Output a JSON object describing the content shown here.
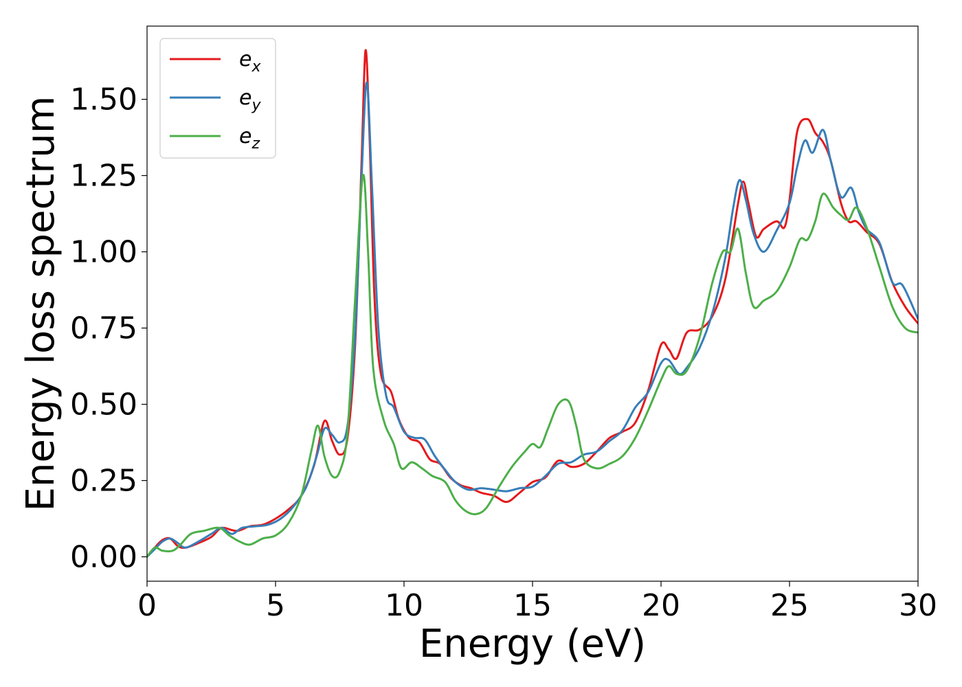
{
  "chart_data": {
    "type": "line",
    "xlabel": "Energy (eV)",
    "ylabel": "Energy loss spectrum",
    "xlim": [
      0,
      30
    ],
    "ylim": [
      -0.08,
      1.74
    ],
    "xticks": [
      {
        "value": 0,
        "label": "0"
      },
      {
        "value": 5,
        "label": "5"
      },
      {
        "value": 10,
        "label": "10"
      },
      {
        "value": 15,
        "label": "15"
      },
      {
        "value": 20,
        "label": "20"
      },
      {
        "value": 25,
        "label": "25"
      },
      {
        "value": 30,
        "label": "30"
      }
    ],
    "yticks": [
      {
        "value": 0.0,
        "label": "0.00"
      },
      {
        "value": 0.25,
        "label": "0.25"
      },
      {
        "value": 0.5,
        "label": "0.50"
      },
      {
        "value": 0.75,
        "label": "0.75"
      },
      {
        "value": 1.0,
        "label": "1.00"
      },
      {
        "value": 1.25,
        "label": "1.25"
      },
      {
        "value": 1.5,
        "label": "1.50"
      }
    ],
    "grid": false,
    "legend_position": "top-left",
    "series": [
      {
        "name": "e",
        "subscript": "x",
        "color": "#e41a1c",
        "points": [
          [
            0,
            0.0
          ],
          [
            0.3,
            0.03
          ],
          [
            0.6,
            0.055
          ],
          [
            0.9,
            0.06
          ],
          [
            1.2,
            0.035
          ],
          [
            1.5,
            0.03
          ],
          [
            2.0,
            0.045
          ],
          [
            2.5,
            0.065
          ],
          [
            2.8,
            0.09
          ],
          [
            3.0,
            0.095
          ],
          [
            3.5,
            0.085
          ],
          [
            4.0,
            0.1
          ],
          [
            4.5,
            0.105
          ],
          [
            5.0,
            0.125
          ],
          [
            5.5,
            0.155
          ],
          [
            6.0,
            0.2
          ],
          [
            6.5,
            0.3
          ],
          [
            6.9,
            0.445
          ],
          [
            7.2,
            0.38
          ],
          [
            7.5,
            0.335
          ],
          [
            7.8,
            0.39
          ],
          [
            8.1,
            0.7
          ],
          [
            8.35,
            1.3
          ],
          [
            8.5,
            1.66
          ],
          [
            8.65,
            1.4
          ],
          [
            8.85,
            0.85
          ],
          [
            9.1,
            0.6
          ],
          [
            9.5,
            0.54
          ],
          [
            9.8,
            0.45
          ],
          [
            10.2,
            0.39
          ],
          [
            10.6,
            0.375
          ],
          [
            11.0,
            0.32
          ],
          [
            11.4,
            0.305
          ],
          [
            11.8,
            0.26
          ],
          [
            12.2,
            0.235
          ],
          [
            12.6,
            0.225
          ],
          [
            13.0,
            0.21
          ],
          [
            13.5,
            0.2
          ],
          [
            14.0,
            0.18
          ],
          [
            14.5,
            0.21
          ],
          [
            15.0,
            0.245
          ],
          [
            15.5,
            0.26
          ],
          [
            16.0,
            0.315
          ],
          [
            16.5,
            0.295
          ],
          [
            17.0,
            0.305
          ],
          [
            17.5,
            0.345
          ],
          [
            18.0,
            0.39
          ],
          [
            18.5,
            0.41
          ],
          [
            19.0,
            0.44
          ],
          [
            19.5,
            0.545
          ],
          [
            20.0,
            0.695
          ],
          [
            20.3,
            0.68
          ],
          [
            20.6,
            0.65
          ],
          [
            21.0,
            0.735
          ],
          [
            21.5,
            0.745
          ],
          [
            22.0,
            0.79
          ],
          [
            22.5,
            0.91
          ],
          [
            23.0,
            1.16
          ],
          [
            23.2,
            1.23
          ],
          [
            23.4,
            1.16
          ],
          [
            23.7,
            1.05
          ],
          [
            24.0,
            1.075
          ],
          [
            24.5,
            1.1
          ],
          [
            24.8,
            1.08
          ],
          [
            25.0,
            1.17
          ],
          [
            25.3,
            1.395
          ],
          [
            25.7,
            1.435
          ],
          [
            26.0,
            1.39
          ],
          [
            26.3,
            1.36
          ],
          [
            26.6,
            1.3
          ],
          [
            27.0,
            1.16
          ],
          [
            27.3,
            1.1
          ],
          [
            27.6,
            1.1
          ],
          [
            28.0,
            1.065
          ],
          [
            28.5,
            1.025
          ],
          [
            29.0,
            0.9
          ],
          [
            29.5,
            0.82
          ],
          [
            30.0,
            0.765
          ]
        ]
      },
      {
        "name": "e",
        "subscript": "y",
        "color": "#377eb8",
        "points": [
          [
            0,
            0.0
          ],
          [
            0.3,
            0.025
          ],
          [
            0.6,
            0.05
          ],
          [
            0.9,
            0.06
          ],
          [
            1.2,
            0.045
          ],
          [
            1.5,
            0.03
          ],
          [
            2.0,
            0.05
          ],
          [
            2.5,
            0.075
          ],
          [
            2.9,
            0.095
          ],
          [
            3.3,
            0.075
          ],
          [
            3.7,
            0.095
          ],
          [
            4.2,
            0.1
          ],
          [
            4.7,
            0.105
          ],
          [
            5.2,
            0.125
          ],
          [
            5.7,
            0.165
          ],
          [
            6.2,
            0.23
          ],
          [
            6.6,
            0.33
          ],
          [
            6.9,
            0.42
          ],
          [
            7.2,
            0.4
          ],
          [
            7.5,
            0.375
          ],
          [
            7.8,
            0.43
          ],
          [
            8.1,
            0.73
          ],
          [
            8.35,
            1.25
          ],
          [
            8.55,
            1.555
          ],
          [
            8.75,
            1.22
          ],
          [
            9.0,
            0.75
          ],
          [
            9.3,
            0.53
          ],
          [
            9.6,
            0.49
          ],
          [
            10.0,
            0.41
          ],
          [
            10.4,
            0.39
          ],
          [
            10.8,
            0.385
          ],
          [
            11.2,
            0.33
          ],
          [
            11.6,
            0.285
          ],
          [
            12.0,
            0.245
          ],
          [
            12.5,
            0.22
          ],
          [
            13.0,
            0.225
          ],
          [
            13.5,
            0.22
          ],
          [
            14.0,
            0.215
          ],
          [
            14.5,
            0.225
          ],
          [
            15.0,
            0.23
          ],
          [
            15.5,
            0.265
          ],
          [
            16.0,
            0.305
          ],
          [
            16.5,
            0.31
          ],
          [
            17.0,
            0.335
          ],
          [
            17.5,
            0.345
          ],
          [
            18.0,
            0.38
          ],
          [
            18.5,
            0.415
          ],
          [
            19.0,
            0.49
          ],
          [
            19.5,
            0.54
          ],
          [
            20.0,
            0.635
          ],
          [
            20.3,
            0.645
          ],
          [
            20.7,
            0.6
          ],
          [
            21.0,
            0.62
          ],
          [
            21.5,
            0.685
          ],
          [
            22.0,
            0.8
          ],
          [
            22.5,
            0.98
          ],
          [
            22.8,
            1.14
          ],
          [
            23.05,
            1.235
          ],
          [
            23.3,
            1.17
          ],
          [
            23.6,
            1.06
          ],
          [
            24.0,
            1.0
          ],
          [
            24.5,
            1.07
          ],
          [
            25.0,
            1.16
          ],
          [
            25.3,
            1.28
          ],
          [
            25.6,
            1.365
          ],
          [
            25.9,
            1.325
          ],
          [
            26.3,
            1.4
          ],
          [
            26.6,
            1.3
          ],
          [
            27.0,
            1.18
          ],
          [
            27.4,
            1.21
          ],
          [
            27.7,
            1.13
          ],
          [
            28.0,
            1.075
          ],
          [
            28.5,
            1.03
          ],
          [
            29.0,
            0.9
          ],
          [
            29.4,
            0.89
          ],
          [
            30.0,
            0.78
          ]
        ]
      },
      {
        "name": "e",
        "subscript": "z",
        "color": "#4daf4a",
        "points": [
          [
            0,
            0.0
          ],
          [
            0.3,
            0.03
          ],
          [
            0.6,
            0.02
          ],
          [
            1.0,
            0.02
          ],
          [
            1.3,
            0.04
          ],
          [
            1.7,
            0.075
          ],
          [
            2.2,
            0.085
          ],
          [
            2.8,
            0.095
          ],
          [
            3.2,
            0.07
          ],
          [
            3.6,
            0.05
          ],
          [
            4.0,
            0.04
          ],
          [
            4.5,
            0.06
          ],
          [
            5.0,
            0.07
          ],
          [
            5.5,
            0.11
          ],
          [
            6.0,
            0.2
          ],
          [
            6.4,
            0.35
          ],
          [
            6.65,
            0.43
          ],
          [
            6.9,
            0.33
          ],
          [
            7.2,
            0.265
          ],
          [
            7.5,
            0.28
          ],
          [
            7.8,
            0.41
          ],
          [
            8.1,
            0.85
          ],
          [
            8.4,
            1.25
          ],
          [
            8.6,
            1.0
          ],
          [
            8.8,
            0.62
          ],
          [
            9.2,
            0.45
          ],
          [
            9.6,
            0.37
          ],
          [
            9.9,
            0.29
          ],
          [
            10.3,
            0.31
          ],
          [
            10.7,
            0.29
          ],
          [
            11.1,
            0.265
          ],
          [
            11.6,
            0.245
          ],
          [
            12.0,
            0.185
          ],
          [
            12.4,
            0.15
          ],
          [
            12.8,
            0.14
          ],
          [
            13.2,
            0.16
          ],
          [
            13.7,
            0.23
          ],
          [
            14.2,
            0.295
          ],
          [
            14.7,
            0.345
          ],
          [
            15.0,
            0.37
          ],
          [
            15.3,
            0.36
          ],
          [
            15.6,
            0.42
          ],
          [
            16.0,
            0.5
          ],
          [
            16.4,
            0.51
          ],
          [
            16.7,
            0.43
          ],
          [
            17.0,
            0.32
          ],
          [
            17.5,
            0.29
          ],
          [
            18.0,
            0.305
          ],
          [
            18.5,
            0.33
          ],
          [
            19.0,
            0.39
          ],
          [
            19.5,
            0.48
          ],
          [
            20.0,
            0.58
          ],
          [
            20.3,
            0.625
          ],
          [
            20.6,
            0.6
          ],
          [
            21.0,
            0.61
          ],
          [
            21.5,
            0.72
          ],
          [
            22.0,
            0.9
          ],
          [
            22.4,
            1.0
          ],
          [
            22.7,
            1.0
          ],
          [
            23.0,
            1.075
          ],
          [
            23.3,
            0.93
          ],
          [
            23.6,
            0.82
          ],
          [
            24.0,
            0.84
          ],
          [
            24.5,
            0.87
          ],
          [
            25.0,
            0.95
          ],
          [
            25.4,
            1.04
          ],
          [
            25.7,
            1.04
          ],
          [
            26.0,
            1.1
          ],
          [
            26.3,
            1.19
          ],
          [
            26.7,
            1.145
          ],
          [
            27.0,
            1.12
          ],
          [
            27.3,
            1.105
          ],
          [
            27.6,
            1.145
          ],
          [
            28.0,
            1.08
          ],
          [
            28.5,
            0.95
          ],
          [
            29.0,
            0.82
          ],
          [
            29.5,
            0.75
          ],
          [
            30.0,
            0.735
          ]
        ]
      }
    ]
  }
}
